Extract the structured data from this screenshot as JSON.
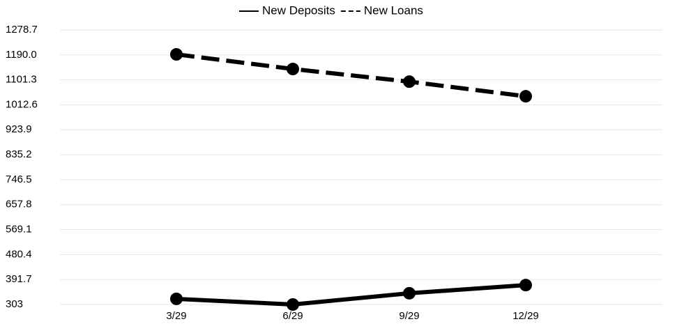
{
  "chart_data": {
    "type": "line",
    "categories": [
      "3/29",
      "6/29",
      "9/29",
      "12/29"
    ],
    "series": [
      {
        "name": "New Deposits",
        "color": "#000000",
        "line_style": "solid",
        "values": [
          323,
          303,
          343,
          372
        ]
      },
      {
        "name": "New Loans",
        "color": "#000000",
        "line_style": "dashed",
        "values": [
          1192,
          1140,
          1095,
          1043
        ]
      }
    ],
    "ylim": [
      303,
      1278.7
    ],
    "yticks": [
      303,
      391.7,
      480.4,
      569.1,
      657.8,
      746.5,
      835.2,
      923.9,
      1012.6,
      1101.3,
      {
        "value": 1190,
        "label": "1190.0"
      },
      1278.7
    ],
    "grid": true,
    "legend": "top"
  }
}
